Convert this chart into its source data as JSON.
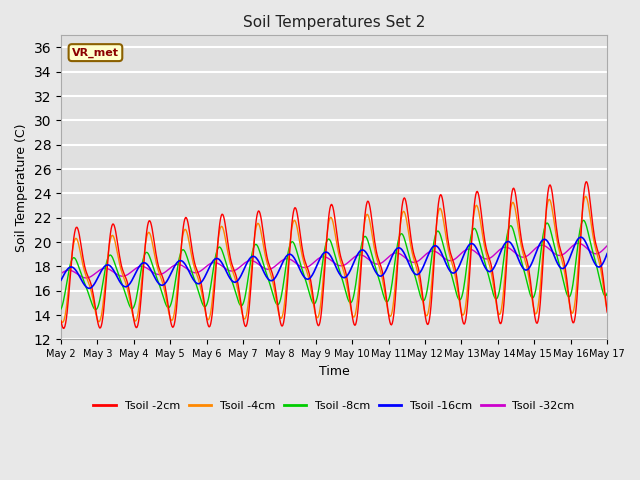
{
  "title": "Soil Temperatures Set 2",
  "xlabel": "Time",
  "ylabel": "Soil Temperature (C)",
  "ylim": [
    12,
    37
  ],
  "yticks": [
    12,
    14,
    16,
    18,
    20,
    22,
    24,
    26,
    28,
    30,
    32,
    34,
    36
  ],
  "plot_bg_color": "#e0e0e0",
  "fig_bg_color": "#e8e8e8",
  "grid_color": "#ffffff",
  "series_colors": [
    "#ff0000",
    "#ff8800",
    "#00cc00",
    "#0000ff",
    "#cc00cc"
  ],
  "series_labels": [
    "Tsoil -2cm",
    "Tsoil -4cm",
    "Tsoil -8cm",
    "Tsoil -16cm",
    "Tsoil -32cm"
  ],
  "annotation_text": "VR_met",
  "n_days": 15,
  "samples_per_day": 48
}
